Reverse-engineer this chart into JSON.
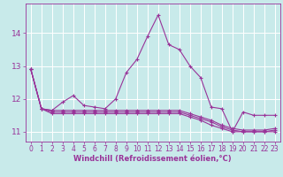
{
  "background_color": "#c8eaea",
  "grid_color": "#ffffff",
  "line_color": "#993399",
  "xlabel": "Windchill (Refroidissement éolien,°C)",
  "x_values": [
    0,
    1,
    2,
    3,
    4,
    5,
    6,
    7,
    8,
    9,
    10,
    11,
    12,
    13,
    14,
    15,
    16,
    17,
    18,
    19,
    20,
    21,
    22,
    23
  ],
  "series": [
    [
      12.9,
      11.7,
      11.65,
      11.9,
      12.1,
      11.8,
      11.75,
      11.7,
      12.0,
      12.8,
      13.2,
      13.9,
      14.55,
      13.65,
      13.5,
      13.0,
      12.65,
      11.75,
      11.7,
      11.0,
      11.6,
      11.5,
      11.5,
      11.5
    ],
    [
      12.9,
      11.7,
      11.65,
      11.65,
      11.65,
      11.65,
      11.65,
      11.65,
      11.65,
      11.65,
      11.65,
      11.65,
      11.65,
      11.65,
      11.65,
      11.55,
      11.45,
      11.35,
      11.2,
      11.1,
      11.05,
      11.05,
      11.05,
      11.1
    ],
    [
      12.9,
      11.7,
      11.6,
      11.6,
      11.6,
      11.6,
      11.6,
      11.6,
      11.6,
      11.6,
      11.6,
      11.6,
      11.6,
      11.6,
      11.6,
      11.5,
      11.4,
      11.3,
      11.15,
      11.05,
      11.0,
      11.0,
      11.0,
      11.05
    ],
    [
      12.9,
      11.7,
      11.55,
      11.55,
      11.55,
      11.55,
      11.55,
      11.55,
      11.55,
      11.55,
      11.55,
      11.55,
      11.55,
      11.55,
      11.55,
      11.45,
      11.35,
      11.2,
      11.1,
      11.0,
      11.0,
      11.0,
      11.0,
      11.0
    ]
  ],
  "ylim": [
    10.7,
    14.9
  ],
  "yticks": [
    11,
    12,
    13,
    14
  ],
  "xticks": [
    0,
    1,
    2,
    3,
    4,
    5,
    6,
    7,
    8,
    9,
    10,
    11,
    12,
    13,
    14,
    15,
    16,
    17,
    18,
    19,
    20,
    21,
    22,
    23
  ],
  "marker": "+",
  "markersize": 3,
  "linewidth": 0.8,
  "tick_fontsize": 5.5,
  "xlabel_fontsize": 6.0
}
